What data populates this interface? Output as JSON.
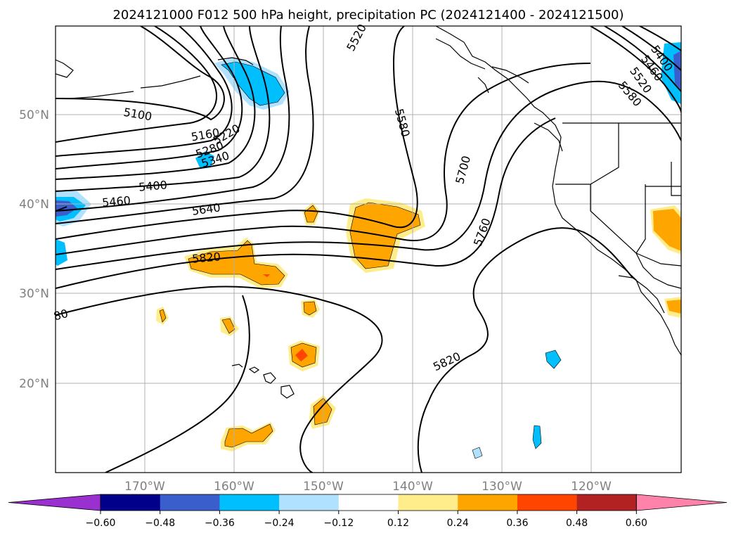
{
  "title": "2024121000 F012 500 hPa height, precipitation PC (2024121400 - 2024121500)",
  "lon_labels": [
    "170°W",
    "160°W",
    "150°W",
    "140°W",
    "130°W",
    "120°W"
  ],
  "lat_labels": [
    "50°N",
    "40°N",
    "30°N",
    "20°N"
  ],
  "colorbar": {
    "ticks": [
      "−0.60",
      "−0.48",
      "−0.36",
      "−0.24",
      "−0.12",
      "0.12",
      "0.24",
      "0.36",
      "0.48",
      "0.60"
    ],
    "colors": [
      "#9b30d0",
      "#00008b",
      "#3a5fcd",
      "#00bfff",
      "#b0e2ff",
      "#ffffff",
      "#ffec8b",
      "#ffa500",
      "#ff4500",
      "#b22222",
      "#ff82ab"
    ]
  },
  "contour_labels": [
    "5100",
    "5160",
    "5220",
    "5280",
    "5340",
    "5400",
    "5460",
    "5640",
    "5820",
    "5520",
    "5580",
    "5700",
    "5760",
    "5820",
    "5400",
    "5460",
    "5520",
    "5580",
    "80"
  ],
  "precip_colors": {
    "blue": "#00bfff",
    "light_blue": "#b0e2ff",
    "dark_blue": "#3a5fcd",
    "yellow": "#ffec8b",
    "orange": "#ffa500",
    "red": "#ff4500"
  }
}
